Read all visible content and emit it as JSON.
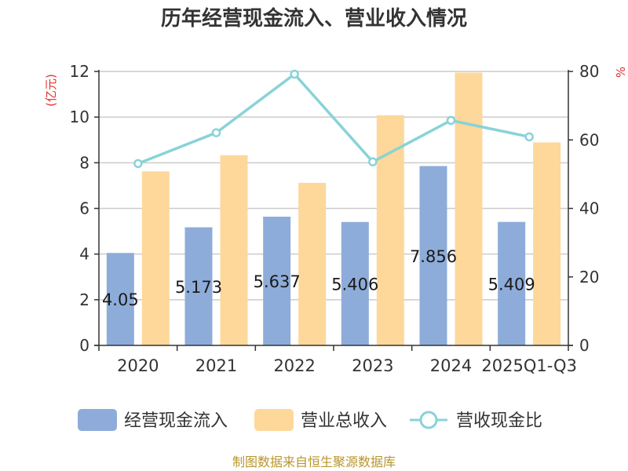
{
  "chart_data": {
    "type": "bar",
    "title": "历年经营现金流入、营业收入情况",
    "unit_left": "(亿元)",
    "unit_right": "%",
    "categories": [
      "2020",
      "2021",
      "2022",
      "2023",
      "2024",
      "2025Q1-Q3"
    ],
    "series": [
      {
        "name": "经营现金流入",
        "type": "bar",
        "axis": "left",
        "values": [
          4.05,
          5.173,
          5.637,
          5.406,
          7.856,
          5.409
        ],
        "labels": [
          "4.05",
          "5.173",
          "5.637",
          "5.406",
          "7.856",
          "5.409"
        ]
      },
      {
        "name": "营业总收入",
        "type": "bar",
        "axis": "left",
        "values": [
          7.62,
          8.33,
          7.12,
          10.08,
          11.95,
          8.89
        ]
      },
      {
        "name": "营收现金比",
        "type": "line",
        "axis": "right",
        "values": [
          53.1,
          62.1,
          79.2,
          53.6,
          65.7,
          60.9
        ]
      }
    ],
    "yleft": {
      "min": 0,
      "max": 12,
      "ticks": [
        0,
        2,
        4,
        6,
        8,
        10,
        12
      ]
    },
    "yright": {
      "min": 0,
      "max": 80,
      "ticks": [
        0,
        20,
        40,
        60,
        80
      ]
    },
    "legend_position": "bottom",
    "colors": {
      "cash": "#8eacd9",
      "revenue": "#fdd89a",
      "ratio": "#88d3d8"
    }
  },
  "footer": {
    "source": "制图数据来自恒生聚源数据库"
  }
}
